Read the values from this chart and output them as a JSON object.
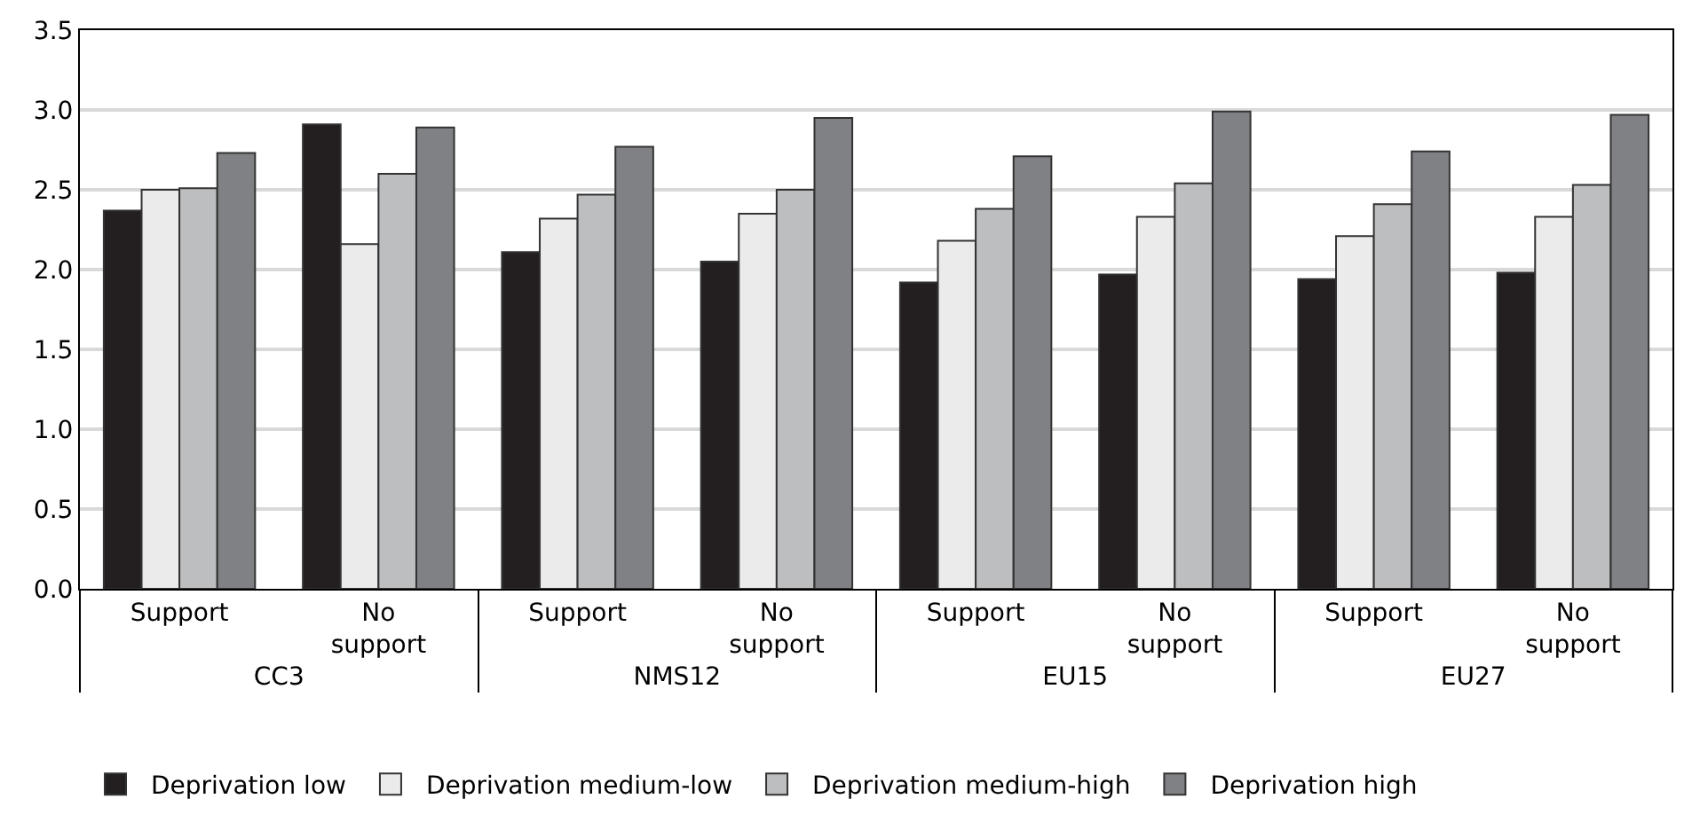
{
  "chart_data": {
    "type": "bar",
    "categories": [
      "Support",
      "No support",
      "Support",
      "No support",
      "Support",
      "No support",
      "Support",
      "No support"
    ],
    "annotations": [
      "CC3",
      "NMS12",
      "EU15",
      "EU27"
    ],
    "series": [
      {
        "name": "Deprivation low",
        "color": "#231f20",
        "values": [
          2.37,
          2.91,
          2.11,
          2.05,
          1.92,
          1.97,
          1.94,
          1.98
        ]
      },
      {
        "name": "Deprivation medium-low",
        "color": "#ebebeb",
        "values": [
          2.5,
          2.16,
          2.32,
          2.35,
          2.18,
          2.33,
          2.21,
          2.33
        ]
      },
      {
        "name": "Deprivation medium-high",
        "color": "#bdbec0",
        "values": [
          2.51,
          2.6,
          2.47,
          2.5,
          2.38,
          2.54,
          2.41,
          2.53
        ]
      },
      {
        "name": "Deprivation high",
        "color": "#808184",
        "values": [
          2.73,
          2.89,
          2.77,
          2.95,
          2.71,
          2.99,
          2.74,
          2.97
        ]
      }
    ],
    "ylim": [
      0,
      3.5
    ],
    "yticks": [
      {
        "value": 0,
        "label": "0.0"
      },
      {
        "value": 0.5,
        "label": "0.5"
      },
      {
        "value": 1,
        "label": "1.0"
      },
      {
        "value": 1.5,
        "label": "1.5"
      },
      {
        "value": 2,
        "label": "2.0"
      },
      {
        "value": 2.5,
        "label": "2.5"
      },
      {
        "value": 3,
        "label": "3.0"
      },
      {
        "value": 3.5,
        "label": "3.5"
      }
    ],
    "grid": "y",
    "legend": "bottom"
  }
}
